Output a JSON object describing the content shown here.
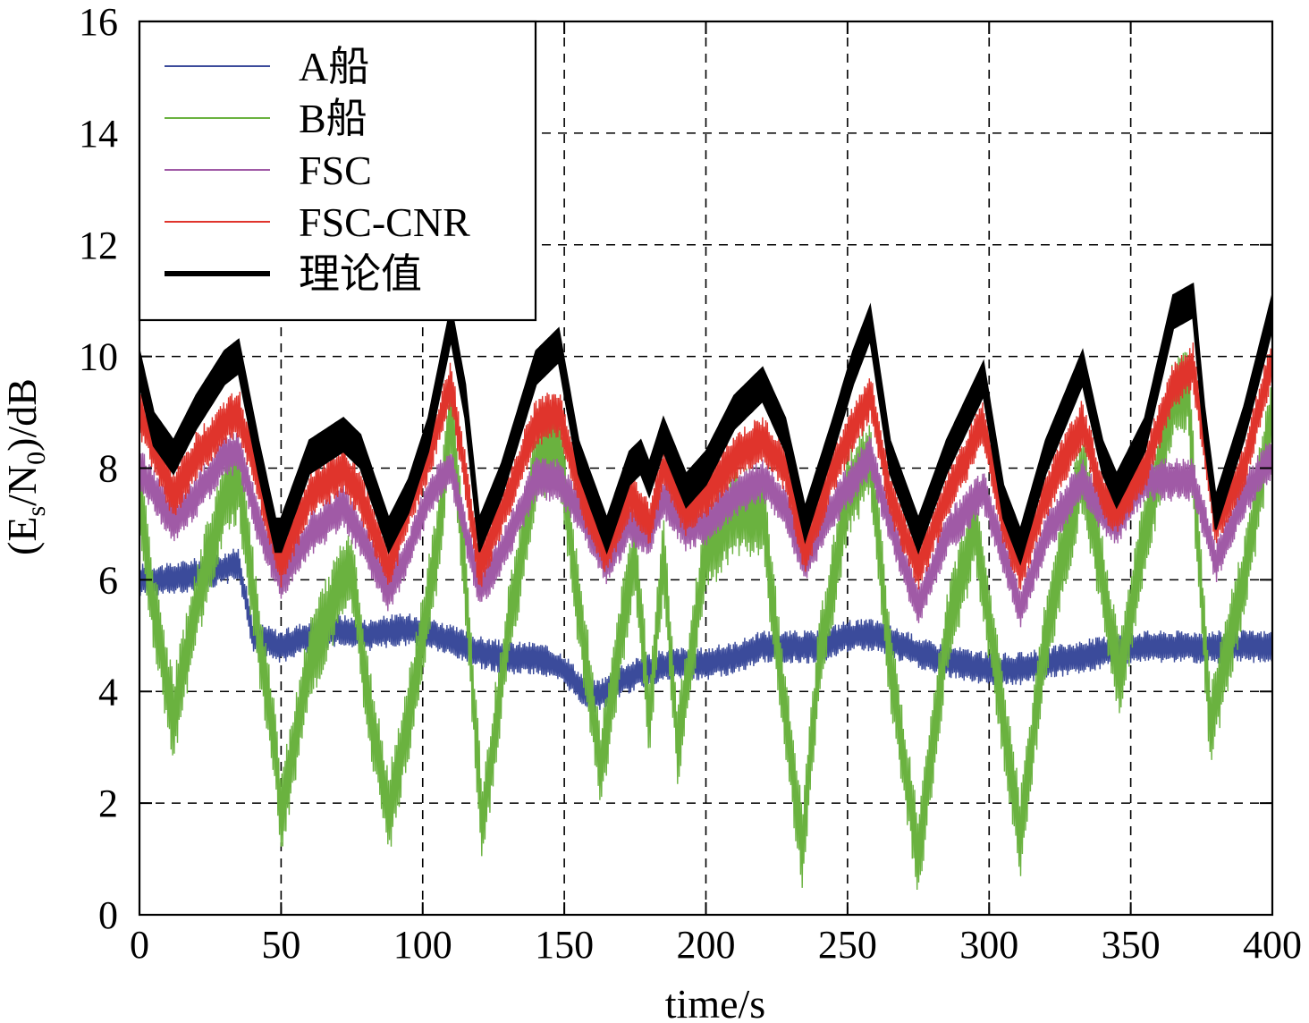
{
  "chart_data": {
    "type": "line",
    "xlabel": "time/s",
    "ylabel_parts": [
      "(E",
      "s",
      "/N",
      "0",
      ")/dB"
    ],
    "xlim": [
      0,
      400
    ],
    "ylim": [
      0,
      16
    ],
    "xticks": [
      0,
      50,
      100,
      150,
      200,
      250,
      300,
      350,
      400
    ],
    "yticks": [
      0,
      2,
      4,
      6,
      8,
      10,
      12,
      14,
      16
    ],
    "grid": true,
    "legend_position": "top-left",
    "series": [
      {
        "name": "A船",
        "color": "#3b4b9b",
        "jitter": 0.3,
        "x": [
          0,
          10,
          20,
          30,
          35,
          40,
          50,
          60,
          70,
          80,
          90,
          100,
          110,
          120,
          130,
          140,
          150,
          155,
          160,
          165,
          170,
          180,
          190,
          200,
          210,
          220,
          230,
          240,
          250,
          260,
          270,
          280,
          290,
          300,
          310,
          320,
          330,
          340,
          350,
          360,
          370,
          380,
          390,
          400
        ],
        "y": [
          6.0,
          6.0,
          6.1,
          6.2,
          6.3,
          5.0,
          4.8,
          5.0,
          5.1,
          5.0,
          5.1,
          5.1,
          4.9,
          4.7,
          4.6,
          4.6,
          4.4,
          4.1,
          3.9,
          4.0,
          4.2,
          4.4,
          4.5,
          4.5,
          4.6,
          4.8,
          4.8,
          4.8,
          5.0,
          5.0,
          4.8,
          4.6,
          4.5,
          4.4,
          4.4,
          4.5,
          4.6,
          4.7,
          4.8,
          4.8,
          4.8,
          4.8,
          4.8,
          4.8
        ]
      },
      {
        "name": "B船",
        "color": "#6ab23f",
        "jitter": 0.8,
        "x": [
          0,
          5,
          12,
          20,
          30,
          35,
          42,
          48,
          50,
          60,
          70,
          75,
          80,
          88,
          95,
          105,
          110,
          115,
          121,
          130,
          140,
          148,
          155,
          163,
          170,
          175,
          180,
          185,
          190,
          200,
          210,
          220,
          227,
          234,
          240,
          250,
          258,
          265,
          275,
          285,
          295,
          305,
          311,
          320,
          333,
          340,
          346,
          355,
          365,
          370,
          378,
          390,
          400
        ],
        "y": [
          7.5,
          5.5,
          3.5,
          5.5,
          7.5,
          7.8,
          5.0,
          3.0,
          1.8,
          4.5,
          5.8,
          6.2,
          4.0,
          1.8,
          3.5,
          6.5,
          9.0,
          6.0,
          1.6,
          5.0,
          8.0,
          8.5,
          5.5,
          2.6,
          5.0,
          6.5,
          3.5,
          6.5,
          3.0,
          6.5,
          7.2,
          7.2,
          4.0,
          1.2,
          4.5,
          7.5,
          8.2,
          4.5,
          1.0,
          5.0,
          7.0,
          3.5,
          1.4,
          5.0,
          8.0,
          6.0,
          4.2,
          6.8,
          9.2,
          9.5,
          3.4,
          6.0,
          9.0
        ]
      },
      {
        "name": "FSC",
        "color": "#a05aa6",
        "jitter": 0.4,
        "x": [
          0,
          12,
          20,
          30,
          35,
          42,
          50,
          60,
          72,
          78,
          88,
          95,
          102,
          110,
          120,
          128,
          140,
          148,
          158,
          165,
          173,
          180,
          185,
          193,
          200,
          210,
          220,
          228,
          235,
          245,
          258,
          265,
          275,
          285,
          298,
          305,
          311,
          320,
          333,
          340,
          345,
          355,
          365,
          372,
          380,
          390,
          400
        ],
        "y": [
          8.0,
          7.0,
          7.5,
          8.2,
          8.3,
          7.0,
          6.0,
          6.8,
          7.3,
          6.8,
          5.8,
          6.5,
          7.5,
          8.0,
          5.8,
          6.5,
          7.8,
          7.8,
          7.0,
          6.3,
          7.0,
          6.8,
          7.5,
          6.9,
          7.0,
          7.5,
          7.8,
          7.3,
          6.3,
          7.3,
          8.2,
          7.0,
          5.5,
          6.8,
          7.6,
          6.5,
          5.5,
          6.8,
          7.8,
          7.2,
          7.0,
          7.8,
          7.8,
          7.8,
          6.3,
          7.5,
          8.2
        ]
      },
      {
        "name": "FSC-CNR",
        "color": "#e0342c",
        "jitter": 0.45,
        "x": [
          0,
          12,
          20,
          30,
          35,
          42,
          50,
          60,
          72,
          78,
          88,
          95,
          102,
          110,
          120,
          128,
          140,
          148,
          158,
          165,
          173,
          180,
          185,
          193,
          200,
          210,
          220,
          228,
          235,
          245,
          258,
          265,
          275,
          285,
          298,
          305,
          311,
          320,
          333,
          340,
          345,
          355,
          365,
          372,
          380,
          390,
          400
        ],
        "y": [
          9.0,
          7.5,
          8.2,
          8.8,
          9.0,
          7.8,
          6.3,
          7.5,
          8.0,
          7.5,
          6.2,
          7.3,
          8.2,
          9.5,
          6.2,
          7.2,
          8.8,
          9.0,
          7.2,
          6.5,
          7.5,
          7.0,
          8.0,
          7.2,
          7.5,
          8.2,
          8.5,
          8.0,
          6.5,
          8.0,
          9.3,
          7.5,
          6.2,
          7.5,
          8.8,
          7.0,
          6.2,
          7.5,
          8.8,
          7.5,
          7.2,
          8.0,
          9.5,
          9.8,
          7.0,
          8.0,
          10.0
        ]
      },
      {
        "name": "理论值",
        "color": "#000000",
        "thick": true,
        "x": [
          0,
          5,
          12,
          20,
          30,
          35,
          42,
          48,
          50,
          60,
          72,
          78,
          88,
          95,
          102,
          110,
          115,
          120,
          128,
          140,
          148,
          155,
          160,
          165,
          173,
          177,
          180,
          185,
          193,
          200,
          210,
          220,
          228,
          235,
          245,
          252,
          258,
          265,
          275,
          285,
          298,
          305,
          311,
          320,
          333,
          340,
          345,
          355,
          365,
          372,
          376,
          380,
          390,
          400
        ],
        "y": [
          9.8,
          8.7,
          8.2,
          9.0,
          9.8,
          10.0,
          8.2,
          6.8,
          6.8,
          8.2,
          8.6,
          8.3,
          6.8,
          7.5,
          8.6,
          10.6,
          9.2,
          6.8,
          7.8,
          9.8,
          10.2,
          8.2,
          7.5,
          6.8,
          8.0,
          8.2,
          7.8,
          8.6,
          7.6,
          8.0,
          9.0,
          9.5,
          8.6,
          7.0,
          8.6,
          9.8,
          10.6,
          8.2,
          6.8,
          8.2,
          9.6,
          7.4,
          6.6,
          8.2,
          9.8,
          8.2,
          7.6,
          8.6,
          10.8,
          11.0,
          8.8,
          7.2,
          8.8,
          10.8
        ]
      }
    ]
  }
}
